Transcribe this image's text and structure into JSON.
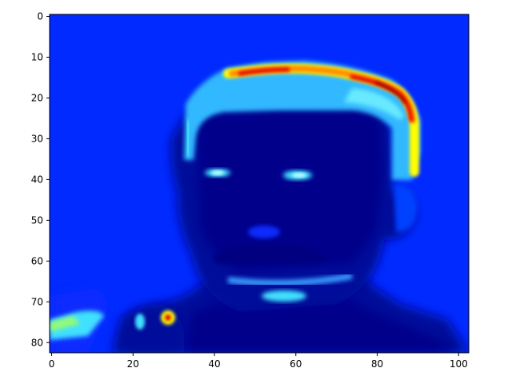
{
  "chart_data": {
    "type": "heatmap",
    "title": "",
    "xlabel": "",
    "ylabel": "",
    "colormap": "jet",
    "image_shape": [
      83,
      103
    ],
    "xlim": [
      -0.5,
      102.5
    ],
    "ylim": [
      82.5,
      -0.5
    ],
    "x_ticks": [
      0,
      20,
      40,
      60,
      80,
      100
    ],
    "x_tick_labels": [
      "0",
      "20",
      "40",
      "60",
      "80",
      "100"
    ],
    "y_ticks": [
      0,
      10,
      20,
      30,
      40,
      50,
      60,
      70,
      80
    ],
    "y_tick_labels": [
      "0",
      "10",
      "20",
      "30",
      "40",
      "50",
      "60",
      "70",
      "80"
    ],
    "background_color": "#0022ff",
    "dark_color": "#00008b",
    "regions": [
      {
        "name": "hair-band",
        "intensity": "high",
        "colors": [
          "#ffff00",
          "#ff8000",
          "#ff0000",
          "#800000"
        ]
      },
      {
        "name": "hair-edge",
        "intensity": "medium",
        "colors": [
          "#40e0ff",
          "#80ffff"
        ]
      },
      {
        "name": "eyes",
        "intensity": "medium",
        "colors": [
          "#40e0ff"
        ]
      },
      {
        "name": "mouth",
        "intensity": "medium",
        "colors": [
          "#40e0ff"
        ]
      },
      {
        "name": "lower-left-hand",
        "intensity": "medium",
        "colors": [
          "#40e0ff",
          "#ffff00",
          "#ff0000"
        ]
      }
    ],
    "grid": false
  }
}
